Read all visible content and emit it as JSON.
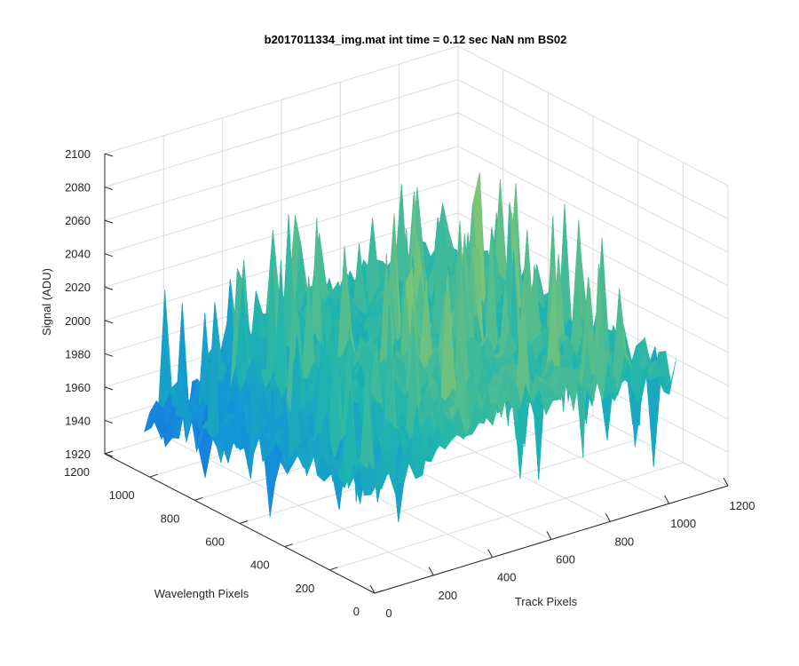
{
  "chart_data": {
    "type": "surface",
    "title": "b2017011334_img.mat int time = 0.12 sec  NaN nm BS02",
    "xlabel": "Track Pixels",
    "ylabel": "Wavelength Pixels",
    "zlabel": "Signal (ADU)",
    "xlim": [
      0,
      1200
    ],
    "ylim": [
      0,
      1200
    ],
    "zlim": [
      1920,
      2100
    ],
    "x_ticks": [
      0,
      200,
      400,
      600,
      800,
      1000,
      1200
    ],
    "y_ticks": [
      0,
      200,
      400,
      600,
      800,
      1000,
      1200
    ],
    "z_ticks": [
      1920,
      1940,
      1960,
      1980,
      2000,
      2020,
      2040,
      2060,
      2080,
      2100
    ],
    "data_extent": {
      "x": [
        0,
        1024
      ],
      "y": [
        0,
        1024
      ]
    },
    "surface_summary": {
      "typical_level": 2000,
      "low_level": 1950,
      "min_spike": 1930,
      "max_spike": 2090
    },
    "grid": true,
    "colormap": "parula"
  }
}
